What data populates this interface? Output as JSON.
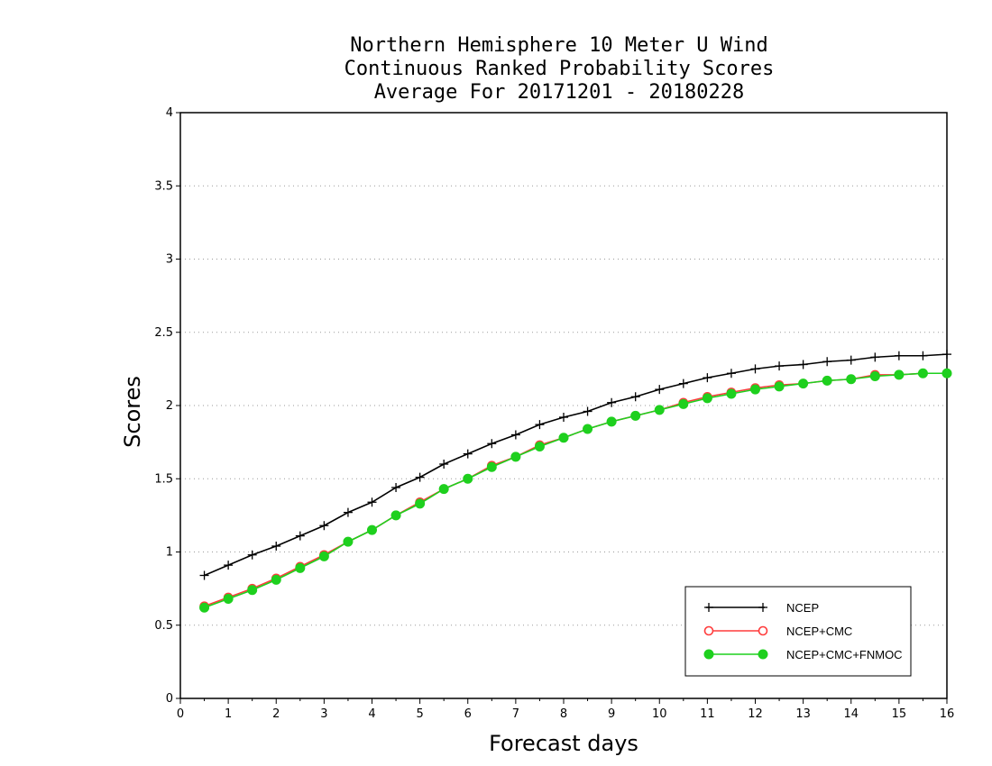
{
  "chart_data": {
    "type": "line",
    "title_lines": [
      "Northern Hemisphere 10 Meter U Wind",
      "Continuous Ranked Probability Scores",
      "Average For 20171201 - 20180228"
    ],
    "xlabel": "Forecast days",
    "ylabel": "Scores",
    "xlim": [
      0,
      16
    ],
    "ylim": [
      0,
      4
    ],
    "xticks": [
      0,
      1,
      2,
      3,
      4,
      5,
      6,
      7,
      8,
      9,
      10,
      11,
      12,
      13,
      14,
      15,
      16
    ],
    "yticks": [
      0,
      0.5,
      1,
      1.5,
      2,
      2.5,
      3,
      3.5,
      4
    ],
    "ytick_labels": [
      "0",
      "0.5",
      "1",
      "1.5",
      "2",
      "2.5",
      "3",
      "3.5",
      "4"
    ],
    "grid": "horizontal dotted",
    "legend_position": "bottom-right",
    "x": [
      0.5,
      1,
      1.5,
      2,
      2.5,
      3,
      3.5,
      4,
      4.5,
      5,
      5.5,
      6,
      6.5,
      7,
      7.5,
      8,
      8.5,
      9,
      9.5,
      10,
      10.5,
      11,
      11.5,
      12,
      12.5,
      13,
      13.5,
      14,
      14.5,
      15,
      15.5,
      16
    ],
    "series": [
      {
        "name": "NCEP",
        "color": "#000000",
        "marker": "plus",
        "values": [
          0.84,
          0.91,
          0.98,
          1.04,
          1.11,
          1.18,
          1.27,
          1.34,
          1.44,
          1.51,
          1.6,
          1.67,
          1.74,
          1.8,
          1.87,
          1.92,
          1.96,
          2.02,
          2.06,
          2.11,
          2.15,
          2.19,
          2.22,
          2.25,
          2.27,
          2.28,
          2.3,
          2.31,
          2.33,
          2.34,
          2.34,
          2.35
        ]
      },
      {
        "name": "NCEP+CMC",
        "color": "#ff3b3b",
        "marker": "open-circle",
        "values": [
          0.63,
          0.69,
          0.75,
          0.82,
          0.9,
          0.98,
          1.07,
          1.15,
          1.25,
          1.34,
          1.43,
          1.5,
          1.59,
          1.65,
          1.73,
          1.78,
          1.84,
          1.89,
          1.93,
          1.97,
          2.02,
          2.06,
          2.09,
          2.12,
          2.14,
          2.15,
          2.17,
          2.18,
          2.21,
          2.21,
          2.22,
          2.22
        ]
      },
      {
        "name": "NCEP+CMC+FNMOC",
        "color": "#1ed01e",
        "marker": "filled-circle",
        "values": [
          0.62,
          0.68,
          0.74,
          0.81,
          0.89,
          0.97,
          1.07,
          1.15,
          1.25,
          1.33,
          1.43,
          1.5,
          1.58,
          1.65,
          1.72,
          1.78,
          1.84,
          1.89,
          1.93,
          1.97,
          2.01,
          2.05,
          2.08,
          2.11,
          2.13,
          2.15,
          2.17,
          2.18,
          2.2,
          2.21,
          2.22,
          2.22
        ]
      }
    ]
  }
}
